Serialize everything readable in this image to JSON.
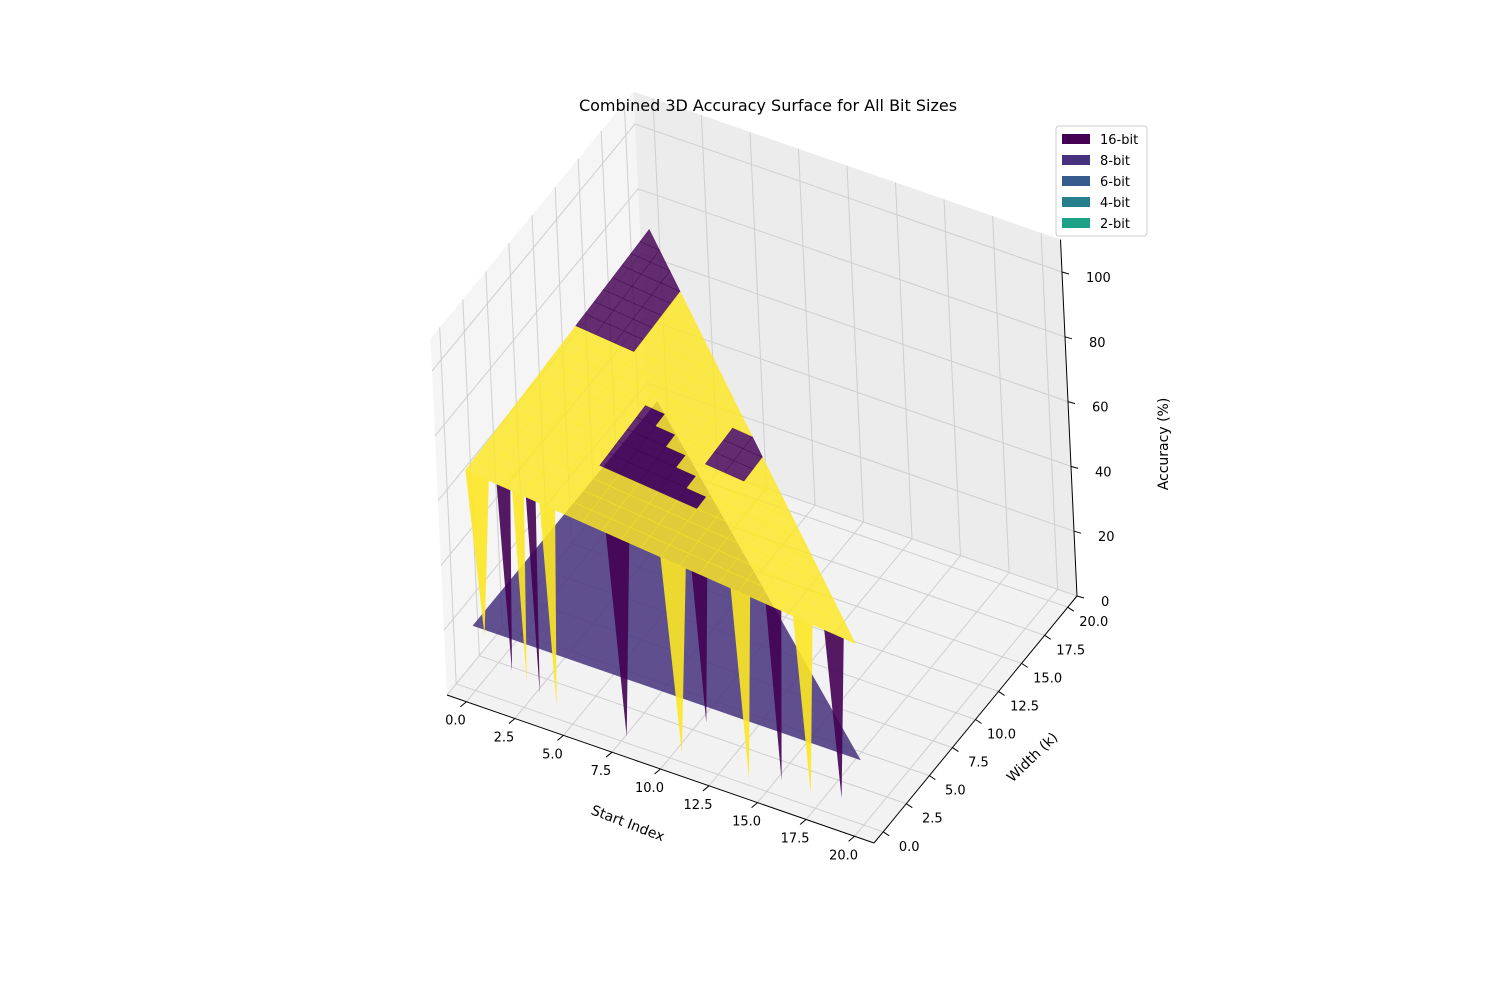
{
  "chart_data": {
    "type": "surface3d",
    "title": "Combined 3D Accuracy Surface for All Bit Sizes",
    "xlabel": "Start Index",
    "ylabel": "Width (k)",
    "zlabel": "Accuracy (%)",
    "xlim": [
      -1,
      21
    ],
    "ylim": [
      -1,
      21
    ],
    "zlim": [
      0,
      100
    ],
    "x_ticks": [
      "0.0",
      "2.5",
      "5.0",
      "7.5",
      "10.0",
      "12.5",
      "15.0",
      "17.5",
      "20.0"
    ],
    "y_ticks": [
      "0.0",
      "2.5",
      "5.0",
      "7.5",
      "10.0",
      "12.5",
      "15.0",
      "17.5",
      "20.0"
    ],
    "z_ticks": [
      "0",
      "20",
      "40",
      "60",
      "80",
      "100"
    ],
    "grid": true,
    "legend_position": "top-right",
    "series": [
      {
        "name": "16-bit",
        "color": "#440154",
        "accuracy_level": 68
      },
      {
        "name": "8-bit",
        "color": "#46327e",
        "accuracy_level": 20
      },
      {
        "name": "6-bit",
        "color": "#365c8d",
        "accuracy_level": null
      },
      {
        "name": "4-bit",
        "color": "#277f8e",
        "accuracy_level": null
      },
      {
        "name": "2-bit",
        "color": "#1fa187",
        "accuracy_level": null
      }
    ],
    "top_surface_color": "#fde725",
    "start_index_max": 20,
    "width_max": 20
  }
}
